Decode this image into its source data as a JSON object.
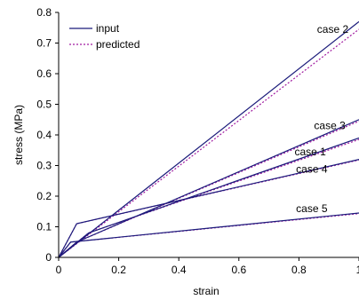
{
  "chart_data": {
    "type": "line",
    "xlabel": "strain",
    "ylabel": "stress (MPa)",
    "xlim": [
      0,
      1
    ],
    "ylim": [
      0,
      0.8
    ],
    "x_ticks": [
      "0",
      "0.2",
      "0.4",
      "0.6",
      "0.8",
      "1"
    ],
    "y_ticks": [
      "0",
      "0.1",
      "0.2",
      "0.3",
      "0.4",
      "0.5",
      "0.6",
      "0.7",
      "0.8"
    ],
    "grid": false,
    "legend": {
      "placement": "top-left",
      "entries": [
        {
          "label": "input",
          "style": "solid"
        },
        {
          "label": "predicted",
          "style": "dotted"
        }
      ]
    },
    "colors": {
      "input": "#1a1a7a",
      "predicted": "#a01aa0"
    },
    "series": [
      {
        "case": "case 2",
        "input": {
          "x": [
            0,
            1
          ],
          "y": [
            0,
            0.77
          ]
        },
        "predicted": {
          "x": [
            0,
            1
          ],
          "y": [
            0,
            0.745
          ]
        },
        "label_at": [
          0.965,
          0.745
        ]
      },
      {
        "case": "case 3",
        "input": {
          "x": [
            0,
            0.06,
            1
          ],
          "y": [
            0,
            0.05,
            0.45
          ]
        },
        "predicted": {
          "x": [
            0,
            0.06,
            1
          ],
          "y": [
            0,
            0.05,
            0.445
          ]
        },
        "label_at": [
          0.955,
          0.43
        ]
      },
      {
        "case": "case 1",
        "input": {
          "x": [
            0,
            0.1,
            1
          ],
          "y": [
            0,
            0.08,
            0.39
          ]
        },
        "predicted": {
          "x": [
            0,
            0.1,
            1
          ],
          "y": [
            0,
            0.08,
            0.385
          ]
        },
        "label_at": [
          0.89,
          0.345
        ]
      },
      {
        "case": "case 4",
        "input": {
          "x": [
            0,
            0.06,
            1
          ],
          "y": [
            0,
            0.11,
            0.32
          ]
        },
        "predicted": {
          "x": [
            0,
            0.06,
            1
          ],
          "y": [
            0,
            0.11,
            0.318
          ]
        },
        "label_at": [
          0.895,
          0.288
        ]
      },
      {
        "case": "case 5",
        "input": {
          "x": [
            0,
            0.04,
            1
          ],
          "y": [
            0,
            0.05,
            0.145
          ]
        },
        "predicted": {
          "x": [
            0,
            0.04,
            1
          ],
          "y": [
            0,
            0.05,
            0.143
          ]
        },
        "label_at": [
          0.895,
          0.16
        ]
      }
    ]
  }
}
